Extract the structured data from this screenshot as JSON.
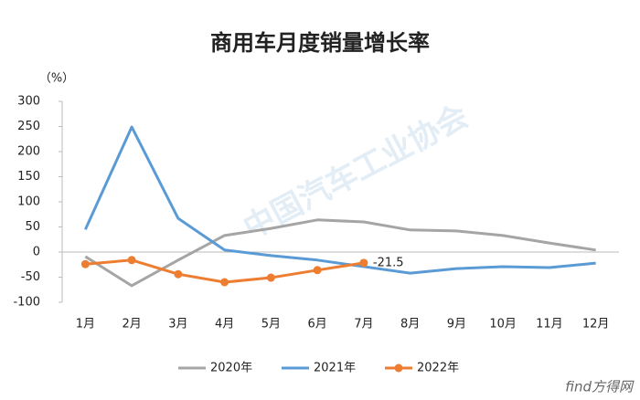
{
  "chart_data": {
    "type": "line",
    "title": "商用车月度销量增长率",
    "y_label": "（%）",
    "watermark": "中国汽车工业协会",
    "logo": "find方得网",
    "categories": [
      "1月",
      "2月",
      "3月",
      "4月",
      "5月",
      "6月",
      "7月",
      "8月",
      "9月",
      "10月",
      "11月",
      "12月"
    ],
    "series": [
      {
        "name": "2020年",
        "color": "#a5a5a5",
        "values": [
          -9,
          -67,
          -16,
          33,
          47,
          64,
          60,
          44,
          42,
          33,
          18,
          4
        ]
      },
      {
        "name": "2021年",
        "color": "#5b9bd5",
        "values": [
          45,
          249,
          67,
          4,
          -7,
          -16,
          -29,
          -42,
          -33,
          -29,
          -31,
          -22
        ]
      },
      {
        "name": "2022年",
        "color": "#ed7d31",
        "values": [
          -24,
          -16,
          -44,
          -60,
          -51,
          -36,
          -21.5,
          null,
          null,
          null,
          null,
          null
        ],
        "markers": true,
        "value_labels": [
          null,
          null,
          null,
          null,
          null,
          null,
          "-21.5",
          null,
          null,
          null,
          null,
          null
        ]
      }
    ],
    "ylim": [
      -100,
      300
    ],
    "yticks": [
      -100,
      -50,
      0,
      50,
      100,
      150,
      200,
      250,
      300
    ],
    "grid": false,
    "legend": "bottom"
  }
}
